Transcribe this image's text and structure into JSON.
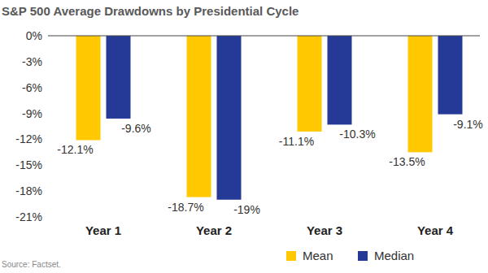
{
  "chart_data": {
    "type": "bar",
    "title": "S&P 500 Average Drawdowns by Presidential Cycle",
    "annotations": [
      "Source: Factset."
    ],
    "categories": [
      "Year 1",
      "Year 2",
      "Year 3",
      "Year 4"
    ],
    "series": [
      {
        "name": "Mean",
        "color": "#FFC800",
        "values": [
          -12.1,
          -18.7,
          -11.1,
          -13.5
        ],
        "value_labels": [
          "-12.1%",
          "-18.7%",
          "-11.1%",
          "-13.5%"
        ]
      },
      {
        "name": "Median",
        "color": "#243A96",
        "values": [
          -9.6,
          -19,
          -10.3,
          -9.1
        ],
        "value_labels": [
          "-9.6%",
          "-19%",
          "-10.3%",
          "-9.1%"
        ]
      }
    ],
    "ylim": [
      -21,
      0
    ],
    "yticks": [
      {
        "value": 0,
        "label": "0%"
      },
      {
        "value": -3,
        "label": "-3%"
      },
      {
        "value": -6,
        "label": "-6%"
      },
      {
        "value": -9,
        "label": "-9%"
      },
      {
        "value": -12,
        "label": "-12%"
      },
      {
        "value": -15,
        "label": "-15%"
      },
      {
        "value": -18,
        "label": "-18%"
      },
      {
        "value": -21,
        "label": "-21%"
      }
    ],
    "grid": false,
    "legend": "bottom",
    "data_labels": true
  }
}
